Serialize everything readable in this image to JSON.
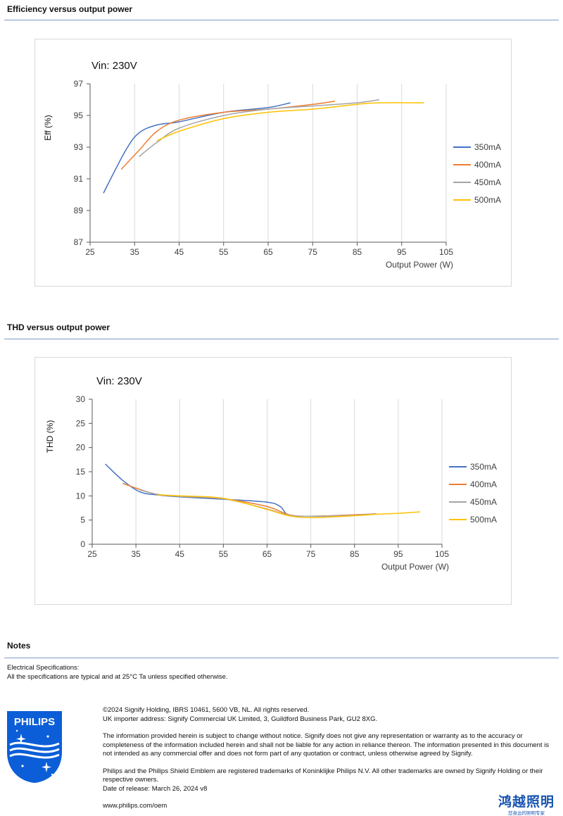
{
  "sections": {
    "efficiency_title": "Efficiency versus output power",
    "thd_title": "THD versus output power",
    "notes_title": "Notes"
  },
  "notes": {
    "line1": "Electrical Specifications:",
    "line2": "All the specifications are typical and at 25°C Ta unless specified otherwise."
  },
  "footer": {
    "copyright": "©2024 Signify Holding, IBRS 10461, 5600 VB, NL. All rights reserved.",
    "importer": "UK importer address: Signify Commercial UK Limited, 3, Guildford Business Park, GU2 8XG.",
    "disclaimer": "The information provided herein is subject to change without notice. Signify does not give any representation or warranty as to the accuracy or completeness of the information included herein and shall not be liable for any action in reliance thereon. The information presented in this document is not intended as any commercial offer and does not form part of any quotation or contract, unless otherwise agreed by Signify.",
    "trademarks": "Philips and the Philips Shield Emblem are registered trademarks of Koninklijke Philips N.V. All other trademarks are owned by Signify Holding or their respective owners.",
    "release": "Date of release: March 26, 2024 v8",
    "website": "www.philips.com/oem"
  },
  "logo": {
    "text": "PHILIPS",
    "icon": "philips-shield-icon",
    "color": "#0b5ed7"
  },
  "brand_cn": {
    "name": "鸿越照明",
    "tagline": "您身边的照明专家",
    "color": "#1a56b0"
  },
  "chart_data": [
    {
      "type": "line",
      "annotation": "Vin: 230V",
      "ylabel": "Eff  (%)",
      "xlabel": "Output Power (W)",
      "xlim": [
        25,
        105
      ],
      "ylim": [
        87,
        97
      ],
      "xticks": [
        25,
        35,
        45,
        55,
        65,
        75,
        85,
        95,
        105
      ],
      "yticks": [
        87,
        89,
        91,
        93,
        95,
        97
      ],
      "grid": "vertical",
      "legend": "right",
      "series": [
        {
          "name": "350mA",
          "color": "#4472c4",
          "x": [
            28,
            33,
            36,
            40,
            45,
            55,
            65,
            70
          ],
          "y": [
            90.1,
            92.8,
            93.9,
            94.4,
            94.6,
            95.2,
            95.5,
            95.8
          ]
        },
        {
          "name": "400mA",
          "color": "#ed7d31",
          "x": [
            32,
            36,
            40,
            45,
            55,
            65,
            75,
            80
          ],
          "y": [
            91.6,
            92.8,
            94.0,
            94.7,
            95.2,
            95.4,
            95.7,
            95.9
          ]
        },
        {
          "name": "450mA",
          "color": "#a5a5a5",
          "x": [
            36,
            40,
            45,
            55,
            65,
            75,
            85,
            90
          ],
          "y": [
            92.4,
            93.3,
            94.2,
            95.0,
            95.4,
            95.6,
            95.8,
            96.0
          ]
        },
        {
          "name": "500mA",
          "color": "#ffc000",
          "x": [
            40,
            45,
            55,
            65,
            75,
            85,
            90,
            100
          ],
          "y": [
            93.4,
            94.0,
            94.8,
            95.2,
            95.4,
            95.7,
            95.8,
            95.8
          ]
        }
      ]
    },
    {
      "type": "line",
      "annotation": "Vin: 230V",
      "ylabel": "THD  (%)",
      "xlabel": "Output Power (W)",
      "xlim": [
        25,
        105
      ],
      "ylim": [
        0,
        30
      ],
      "xticks": [
        25,
        35,
        45,
        55,
        65,
        75,
        85,
        95,
        105
      ],
      "yticks": [
        0,
        5,
        10,
        15,
        20,
        25,
        30
      ],
      "grid": "vertical",
      "legend": "right",
      "series": [
        {
          "name": "350mA",
          "color": "#4472c4",
          "x": [
            28,
            32,
            36,
            40,
            45,
            55,
            65,
            68,
            70,
            75,
            85,
            90
          ],
          "y": [
            16.6,
            13.2,
            10.8,
            10.2,
            9.8,
            9.3,
            8.7,
            7.8,
            6.0,
            5.8,
            6.0,
            6.3
          ]
        },
        {
          "name": "400mA",
          "color": "#ed7d31",
          "x": [
            32,
            36,
            40,
            45,
            55,
            65,
            70,
            75,
            85,
            90
          ],
          "y": [
            12.6,
            11.3,
            10.3,
            9.9,
            9.4,
            7.8,
            6.1,
            5.8,
            6.1,
            6.3
          ]
        },
        {
          "name": "450mA",
          "color": "#a5a5a5",
          "x": [
            36,
            40,
            45,
            55,
            65,
            70,
            75,
            85,
            90
          ],
          "y": [
            11.2,
            10.3,
            9.9,
            9.4,
            7.3,
            6.0,
            5.8,
            6.0,
            6.3
          ]
        },
        {
          "name": "500mA",
          "color": "#ffc000",
          "x": [
            40,
            45,
            55,
            65,
            70,
            75,
            85,
            90,
            95,
            100
          ],
          "y": [
            10.2,
            10.0,
            9.5,
            7.2,
            5.9,
            5.5,
            5.9,
            6.2,
            6.4,
            6.7
          ]
        }
      ]
    }
  ]
}
